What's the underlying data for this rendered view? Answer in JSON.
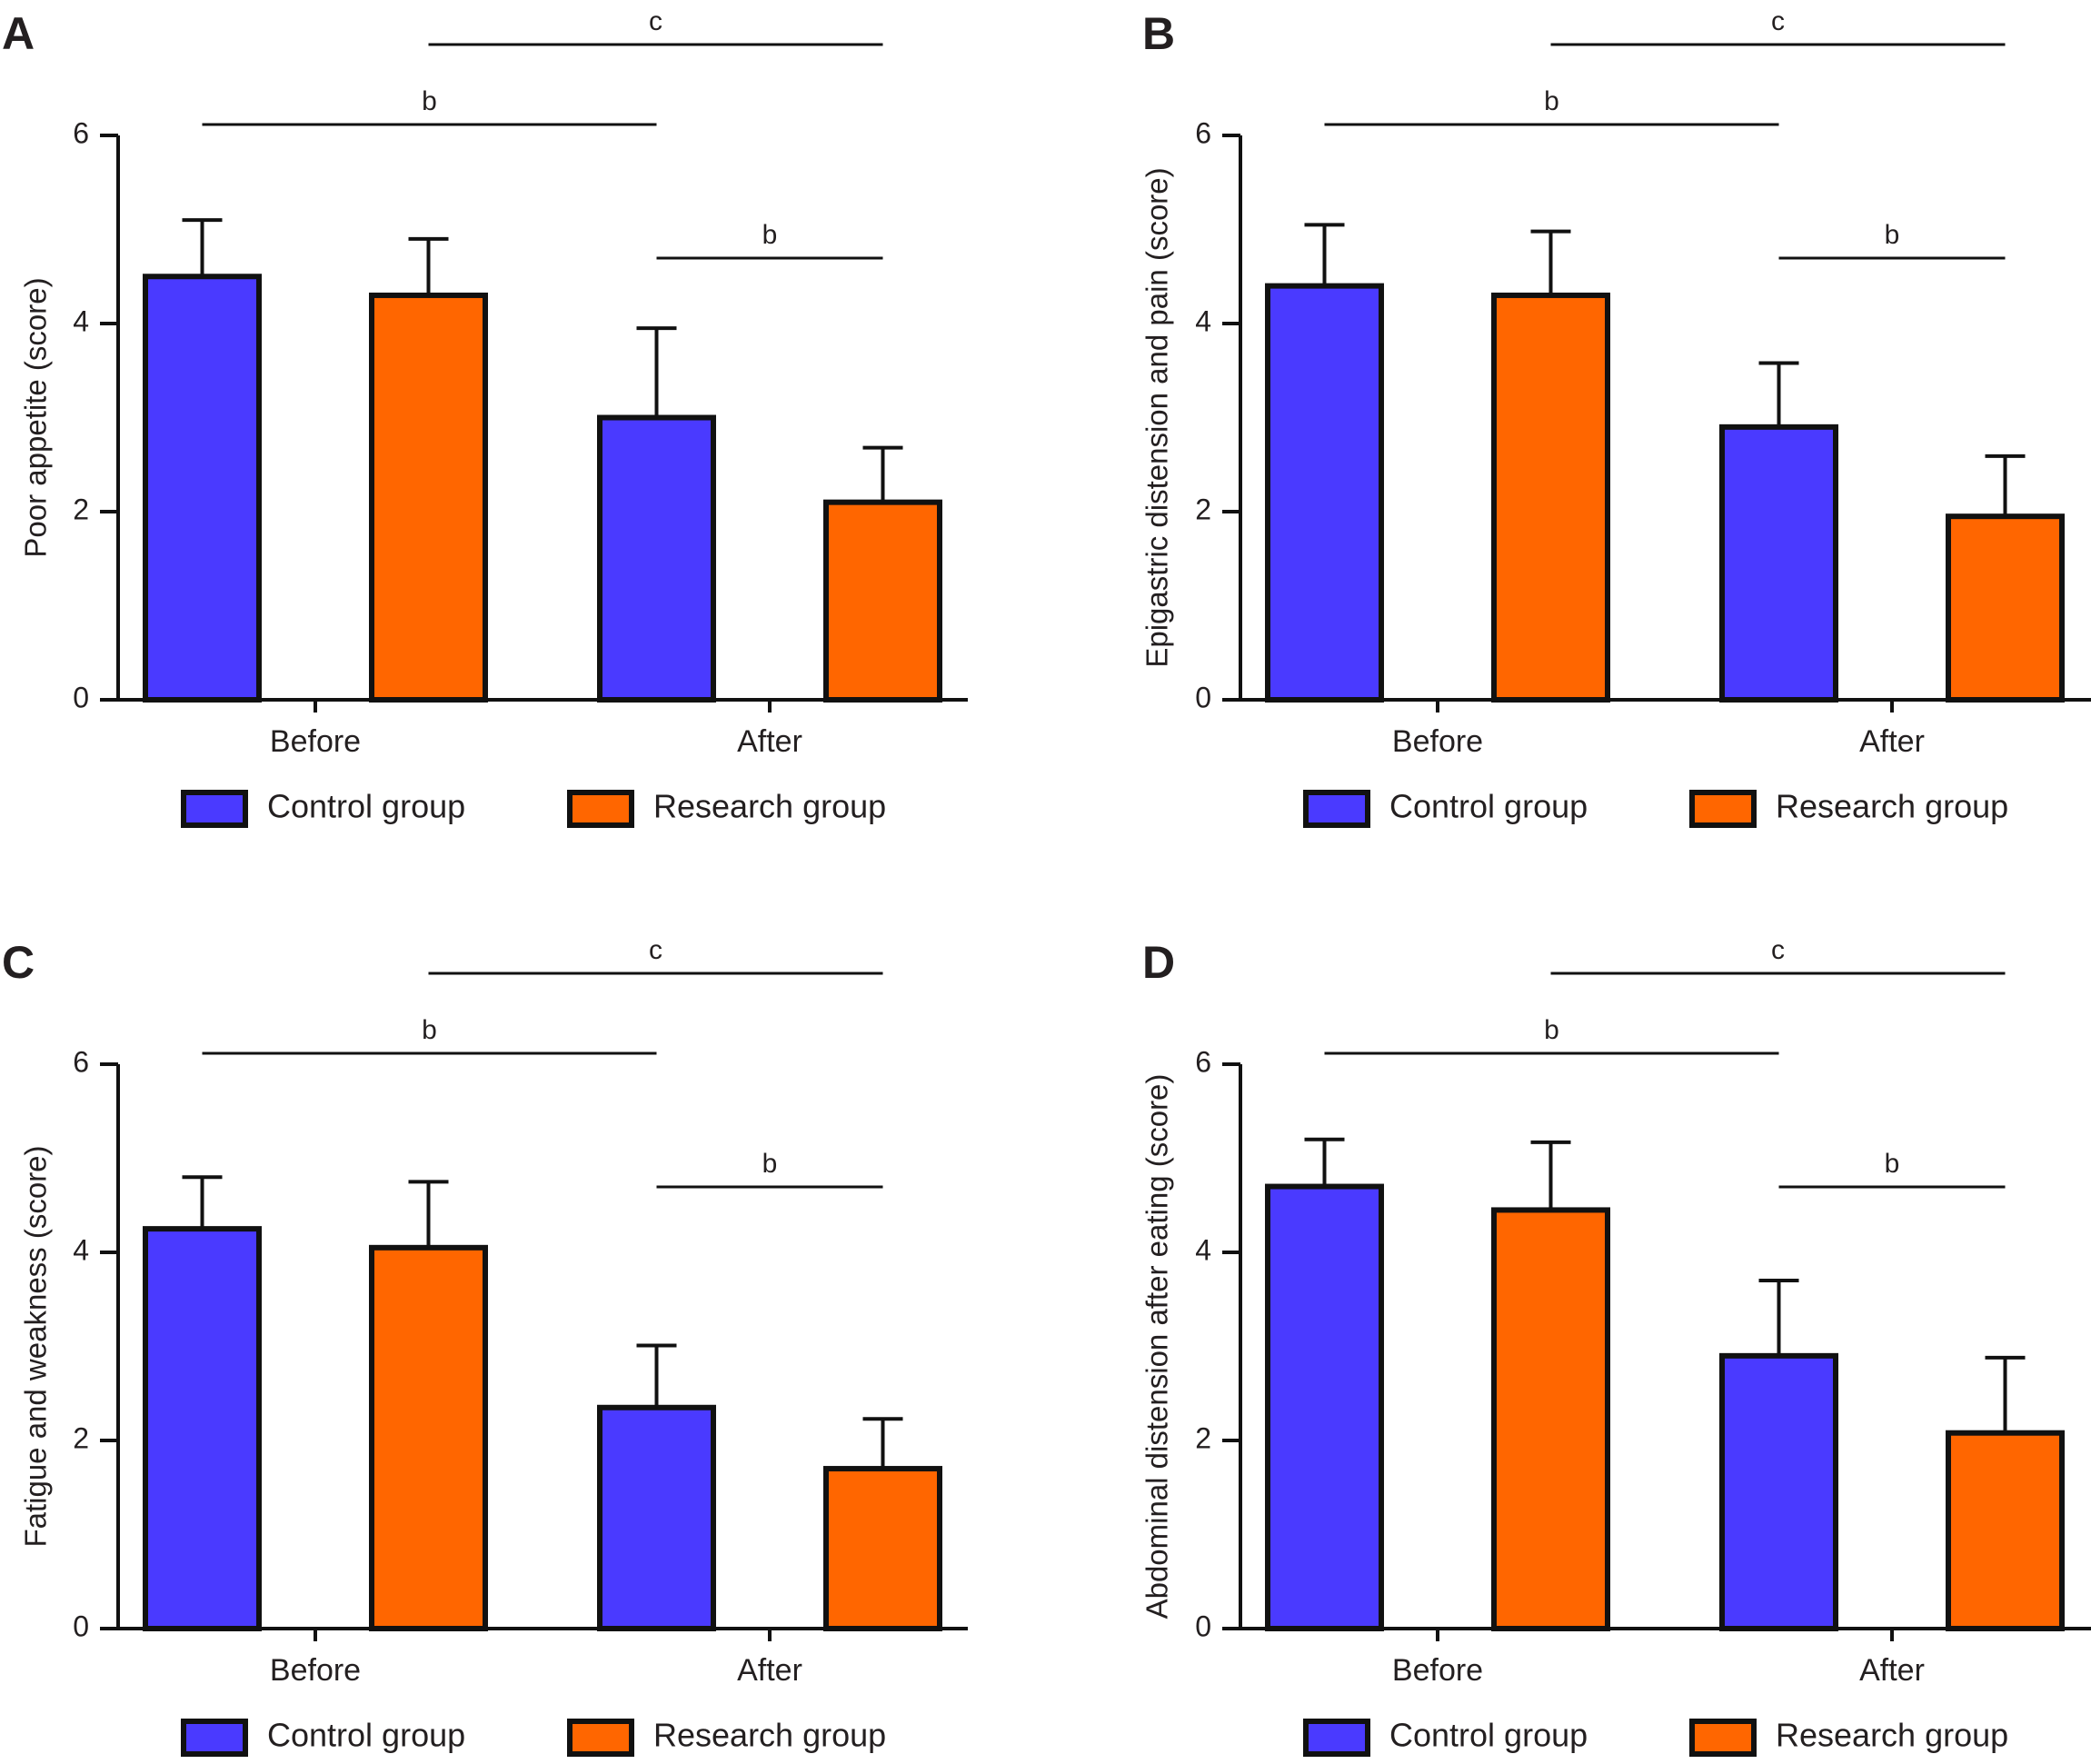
{
  "colors": {
    "control": "#4a3aff",
    "research": "#ff6600",
    "ink": "#111111"
  },
  "legend": {
    "control": "Control group",
    "research": "Research group"
  },
  "chart_data": [
    {
      "panel": "A",
      "type": "bar",
      "categories": [
        "Before",
        "After"
      ],
      "ylabel": "Poor appetite (score)",
      "ylim": [
        0,
        6
      ],
      "yticks": [
        0,
        2,
        4,
        6
      ],
      "series": [
        {
          "name": "Control group",
          "values": [
            4.5,
            3.0
          ],
          "errors": [
            0.6,
            0.95
          ]
        },
        {
          "name": "Research group",
          "values": [
            4.3,
            2.1
          ],
          "errors": [
            0.6,
            0.58
          ]
        }
      ],
      "annotations": [
        {
          "label": "b",
          "from": "Control group|Before",
          "to": "Control group|After"
        },
        {
          "label": "c",
          "from": "Research group|Before",
          "to": "Research group|After"
        },
        {
          "label": "b",
          "from": "Control group|After",
          "to": "Research group|After"
        }
      ]
    },
    {
      "panel": "B",
      "type": "bar",
      "categories": [
        "Before",
        "After"
      ],
      "ylabel": "Epigastric distension and pain (score)",
      "ylim": [
        0,
        6
      ],
      "yticks": [
        0,
        2,
        4,
        6
      ],
      "series": [
        {
          "name": "Control group",
          "values": [
            4.4,
            2.9
          ],
          "errors": [
            0.65,
            0.68
          ]
        },
        {
          "name": "Research group",
          "values": [
            4.3,
            1.95
          ],
          "errors": [
            0.68,
            0.64
          ]
        }
      ],
      "annotations": [
        {
          "label": "b",
          "from": "Control group|Before",
          "to": "Control group|After"
        },
        {
          "label": "c",
          "from": "Research group|Before",
          "to": "Research group|After"
        },
        {
          "label": "b",
          "from": "Control group|After",
          "to": "Research group|After"
        }
      ]
    },
    {
      "panel": "C",
      "type": "bar",
      "categories": [
        "Before",
        "After"
      ],
      "ylabel": "Fatigue and weakness (score)",
      "ylim": [
        0,
        6
      ],
      "yticks": [
        0,
        2,
        4,
        6
      ],
      "series": [
        {
          "name": "Control group",
          "values": [
            4.25,
            2.35
          ],
          "errors": [
            0.55,
            0.66
          ]
        },
        {
          "name": "Research group",
          "values": [
            4.05,
            1.7
          ],
          "errors": [
            0.7,
            0.53
          ]
        }
      ],
      "annotations": [
        {
          "label": "b",
          "from": "Control group|Before",
          "to": "Control group|After"
        },
        {
          "label": "c",
          "from": "Research group|Before",
          "to": "Research group|After"
        },
        {
          "label": "b",
          "from": "Control group|After",
          "to": "Research group|After"
        }
      ]
    },
    {
      "panel": "D",
      "type": "bar",
      "categories": [
        "Before",
        "After"
      ],
      "ylabel": "Abdominal distension after eating (score)",
      "ylim": [
        0,
        6
      ],
      "yticks": [
        0,
        2,
        4,
        6
      ],
      "series": [
        {
          "name": "Control group",
          "values": [
            4.7,
            2.9
          ],
          "errors": [
            0.5,
            0.8
          ]
        },
        {
          "name": "Research group",
          "values": [
            4.45,
            2.08
          ],
          "errors": [
            0.72,
            0.8
          ]
        }
      ],
      "annotations": [
        {
          "label": "b",
          "from": "Control group|Before",
          "to": "Control group|After"
        },
        {
          "label": "c",
          "from": "Research group|Before",
          "to": "Research group|After"
        },
        {
          "label": "b",
          "from": "Control group|After",
          "to": "Research group|After"
        }
      ]
    }
  ]
}
